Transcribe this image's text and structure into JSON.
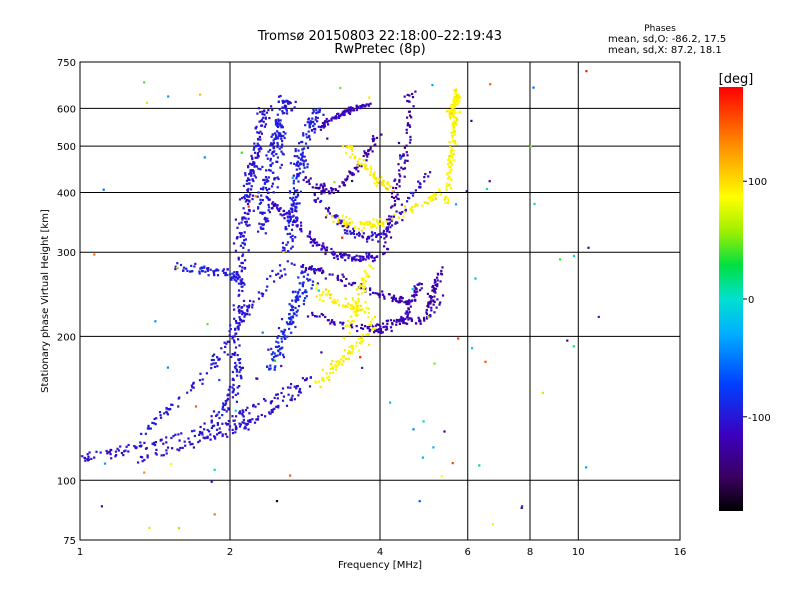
{
  "chart_data": {
    "type": "scatter",
    "title": "Tromsø 20150803 22:18:00–22:19:43",
    "subtitle": "RwPretec (8p)",
    "xlabel": "Frequency [MHz]",
    "ylabel": "Stationary phase Virtual Height [km]",
    "x_scale": "log",
    "y_scale": "log",
    "xlim": [
      1,
      16
    ],
    "ylim": [
      75,
      750
    ],
    "x_ticks": [
      1,
      2,
      4,
      6,
      8,
      10,
      16
    ],
    "x_tick_labels": [
      "1",
      "2",
      "4",
      "6",
      "8",
      "10",
      "16"
    ],
    "y_ticks": [
      75,
      100,
      200,
      300,
      400,
      500,
      600,
      750
    ],
    "y_tick_labels": [
      "75",
      "100",
      "200",
      "300",
      "400",
      "500",
      "600",
      "750"
    ],
    "x_gridlines": [
      2,
      4,
      6,
      8,
      10
    ],
    "y_gridlines": [
      100,
      200,
      300,
      400,
      500,
      600
    ],
    "grid": true,
    "phase_info": {
      "heading": "Phases",
      "line_o": "mean, sd,O: -86.2, 17.5",
      "line_x": "mean, sd,X:  87.2, 18.1"
    },
    "colorbar": {
      "label": "[deg]",
      "range": [
        -180,
        180
      ],
      "ticks": [
        100,
        0,
        -100
      ],
      "tick_labels": [
        "100",
        "0",
        "-100"
      ],
      "colormap": "rainbow"
    },
    "traces": [
      {
        "phase": -105,
        "spread_f": 0.012,
        "spread_h": 0.015,
        "count": 130,
        "points": [
          [
            1.0,
            112
          ],
          [
            1.1,
            112
          ],
          [
            1.2,
            115
          ],
          [
            1.3,
            117
          ],
          [
            1.4,
            120
          ],
          [
            1.6,
            123
          ],
          [
            1.8,
            127
          ],
          [
            2.0,
            133
          ],
          [
            2.2,
            142
          ],
          [
            2.5,
            150
          ],
          [
            2.8,
            160
          ],
          [
            3.0,
            165
          ]
        ]
      },
      {
        "phase": -105,
        "spread_f": 0.012,
        "spread_h": 0.015,
        "count": 110,
        "points": [
          [
            1.3,
            110
          ],
          [
            1.5,
            115
          ],
          [
            1.7,
            120
          ],
          [
            1.9,
            125
          ],
          [
            2.1,
            130
          ],
          [
            2.3,
            135
          ],
          [
            2.6,
            145
          ],
          [
            2.9,
            160
          ]
        ]
      },
      {
        "phase": -100,
        "spread_f": 0.015,
        "spread_h": 0.02,
        "count": 130,
        "points": [
          [
            1.35,
            127
          ],
          [
            1.5,
            140
          ],
          [
            1.7,
            157
          ],
          [
            1.85,
            175
          ],
          [
            2.0,
            195
          ],
          [
            2.1,
            215
          ],
          [
            2.2,
            235
          ],
          [
            2.4,
            260
          ],
          [
            2.7,
            290
          ]
        ]
      },
      {
        "phase": -95,
        "spread_f": 0.012,
        "spread_h": 0.015,
        "count": 70,
        "points": [
          [
            1.55,
            278
          ],
          [
            1.7,
            278
          ],
          [
            1.85,
            275
          ],
          [
            2.0,
            270
          ],
          [
            2.1,
            265
          ]
        ]
      },
      {
        "phase": -100,
        "spread_f": 0.02,
        "spread_h": 0.02,
        "count": 70,
        "points": [
          [
            1.8,
            130
          ],
          [
            1.95,
            140
          ],
          [
            2.05,
            160
          ],
          [
            2.1,
            180
          ]
        ]
      },
      {
        "phase": -102,
        "spread_f": 0.02,
        "spread_h": 0.015,
        "count": 220,
        "points": [
          [
            2.05,
            180
          ],
          [
            2.08,
            230
          ],
          [
            2.1,
            280
          ],
          [
            2.12,
            330
          ],
          [
            2.15,
            380
          ],
          [
            2.2,
            430
          ],
          [
            2.25,
            480
          ],
          [
            2.3,
            540
          ],
          [
            2.35,
            600
          ]
        ]
      },
      {
        "phase": -98,
        "spread_f": 0.025,
        "spread_h": 0.015,
        "count": 190,
        "points": [
          [
            2.3,
            330
          ],
          [
            2.35,
            380
          ],
          [
            2.4,
            430
          ],
          [
            2.45,
            480
          ],
          [
            2.5,
            530
          ],
          [
            2.55,
            580
          ],
          [
            2.6,
            630
          ]
        ]
      },
      {
        "phase": -95,
        "spread_f": 0.02,
        "spread_h": 0.015,
        "count": 180,
        "points": [
          [
            2.6,
            300
          ],
          [
            2.65,
            350
          ],
          [
            2.7,
            400
          ],
          [
            2.75,
            450
          ],
          [
            2.8,
            500
          ],
          [
            2.9,
            550
          ],
          [
            3.0,
            600
          ]
        ]
      },
      {
        "phase": -90,
        "spread_f": 0.025,
        "spread_h": 0.02,
        "count": 130,
        "points": [
          [
            2.4,
            170
          ],
          [
            2.5,
            190
          ],
          [
            2.6,
            210
          ],
          [
            2.7,
            230
          ],
          [
            2.8,
            250
          ],
          [
            2.9,
            270
          ]
        ]
      },
      {
        "phase": -112,
        "spread_f": 0.012,
        "spread_h": 0.012,
        "count": 130,
        "points": [
          [
            2.4,
            380
          ],
          [
            2.6,
            360
          ],
          [
            2.8,
            335
          ],
          [
            3.0,
            310
          ],
          [
            3.3,
            295
          ],
          [
            3.6,
            290
          ],
          [
            4.0,
            295
          ]
        ]
      },
      {
        "phase": -115,
        "spread_f": 0.01,
        "spread_h": 0.01,
        "count": 80,
        "points": [
          [
            3.0,
            540
          ],
          [
            3.2,
            570
          ],
          [
            3.4,
            590
          ],
          [
            3.6,
            600
          ],
          [
            3.8,
            610
          ]
        ]
      },
      {
        "phase": -120,
        "spread_f": 0.012,
        "spread_h": 0.012,
        "count": 100,
        "points": [
          [
            2.8,
            280
          ],
          [
            3.0,
            275
          ],
          [
            3.3,
            265
          ],
          [
            3.6,
            255
          ],
          [
            4.0,
            245
          ],
          [
            4.3,
            240
          ],
          [
            4.6,
            235
          ]
        ]
      },
      {
        "phase": -118,
        "spread_f": 0.012,
        "spread_h": 0.012,
        "count": 100,
        "points": [
          [
            2.9,
            225
          ],
          [
            3.2,
            215
          ],
          [
            3.5,
            210
          ],
          [
            3.8,
            208
          ],
          [
            4.0,
            205
          ],
          [
            4.2,
            210
          ],
          [
            4.5,
            220
          ],
          [
            4.7,
            240
          ],
          [
            4.8,
            260
          ]
        ]
      },
      {
        "phase": -122,
        "spread_f": 0.012,
        "spread_h": 0.015,
        "count": 90,
        "points": [
          [
            2.8,
            430
          ],
          [
            3.0,
            410
          ],
          [
            3.2,
            405
          ],
          [
            3.4,
            420
          ],
          [
            3.6,
            450
          ],
          [
            3.8,
            490
          ],
          [
            4.0,
            530
          ]
        ]
      },
      {
        "phase": -108,
        "spread_f": 0.012,
        "spread_h": 0.015,
        "count": 110,
        "points": [
          [
            2.9,
            400
          ],
          [
            3.2,
            360
          ],
          [
            3.5,
            330
          ],
          [
            3.8,
            320
          ],
          [
            4.1,
            330
          ],
          [
            4.4,
            360
          ],
          [
            4.7,
            400
          ],
          [
            5.0,
            440
          ]
        ]
      },
      {
        "phase": -125,
        "spread_f": 0.015,
        "spread_h": 0.015,
        "count": 90,
        "points": [
          [
            4.1,
            300
          ],
          [
            4.2,
            350
          ],
          [
            4.3,
            400
          ],
          [
            4.4,
            450
          ],
          [
            4.5,
            500
          ],
          [
            4.55,
            560
          ],
          [
            4.6,
            640
          ]
        ]
      },
      {
        "phase": -120,
        "spread_f": 0.01,
        "spread_h": 0.012,
        "count": 60,
        "points": [
          [
            3.9,
            210
          ],
          [
            4.2,
            215
          ],
          [
            4.5,
            215
          ],
          [
            4.8,
            215
          ],
          [
            5.1,
            225
          ],
          [
            5.3,
            240
          ]
        ]
      },
      {
        "phase": -125,
        "spread_f": 0.012,
        "spread_h": 0.015,
        "count": 50,
        "points": [
          [
            5.0,
            230
          ],
          [
            5.1,
            245
          ],
          [
            5.2,
            260
          ],
          [
            5.3,
            275
          ]
        ]
      },
      {
        "phase": 88,
        "spread_f": 0.01,
        "spread_h": 0.015,
        "count": 110,
        "points": [
          [
            5.45,
            380
          ],
          [
            5.5,
            420
          ],
          [
            5.55,
            470
          ],
          [
            5.6,
            520
          ],
          [
            5.65,
            570
          ],
          [
            5.7,
            620
          ],
          [
            5.7,
            650
          ]
        ]
      },
      {
        "phase": 92,
        "spread_f": 0.015,
        "spread_h": 0.015,
        "count": 100,
        "points": [
          [
            3.2,
            360
          ],
          [
            3.5,
            340
          ],
          [
            3.8,
            340
          ],
          [
            4.2,
            350
          ],
          [
            4.6,
            370
          ],
          [
            5.0,
            385
          ],
          [
            5.3,
            400
          ]
        ]
      },
      {
        "phase": 95,
        "spread_f": 0.015,
        "spread_h": 0.015,
        "count": 60,
        "points": [
          [
            3.4,
            500
          ],
          [
            3.6,
            470
          ],
          [
            3.8,
            440
          ],
          [
            4.0,
            420
          ],
          [
            4.2,
            410
          ]
        ]
      },
      {
        "phase": 90,
        "spread_f": 0.015,
        "spread_h": 0.02,
        "count": 60,
        "points": [
          [
            3.0,
            250
          ],
          [
            3.2,
            240
          ],
          [
            3.5,
            230
          ],
          [
            3.8,
            225
          ]
        ]
      },
      {
        "phase": 92,
        "spread_f": 0.015,
        "spread_h": 0.015,
        "count": 80,
        "points": [
          [
            2.9,
            155
          ],
          [
            3.1,
            165
          ],
          [
            3.3,
            175
          ],
          [
            3.5,
            185
          ],
          [
            3.7,
            200
          ],
          [
            3.9,
            215
          ]
        ]
      },
      {
        "phase": 88,
        "spread_f": 0.015,
        "spread_h": 0.02,
        "count": 50,
        "points": [
          [
            3.4,
            200
          ],
          [
            3.5,
            220
          ],
          [
            3.6,
            240
          ],
          [
            3.7,
            260
          ],
          [
            3.8,
            280
          ]
        ]
      },
      {
        "phase": 90,
        "spread_f": 0.01,
        "spread_h": 0.015,
        "count": 40,
        "points": [
          [
            5.5,
            580
          ],
          [
            5.6,
            600
          ],
          [
            5.65,
            620
          ],
          [
            5.7,
            640
          ]
        ]
      }
    ],
    "scatter_noise": {
      "count": 90,
      "phase_range": [
        -180,
        180
      ],
      "x_range": [
        1.0,
        11.0
      ],
      "y_range": [
        78,
        720
      ]
    }
  }
}
